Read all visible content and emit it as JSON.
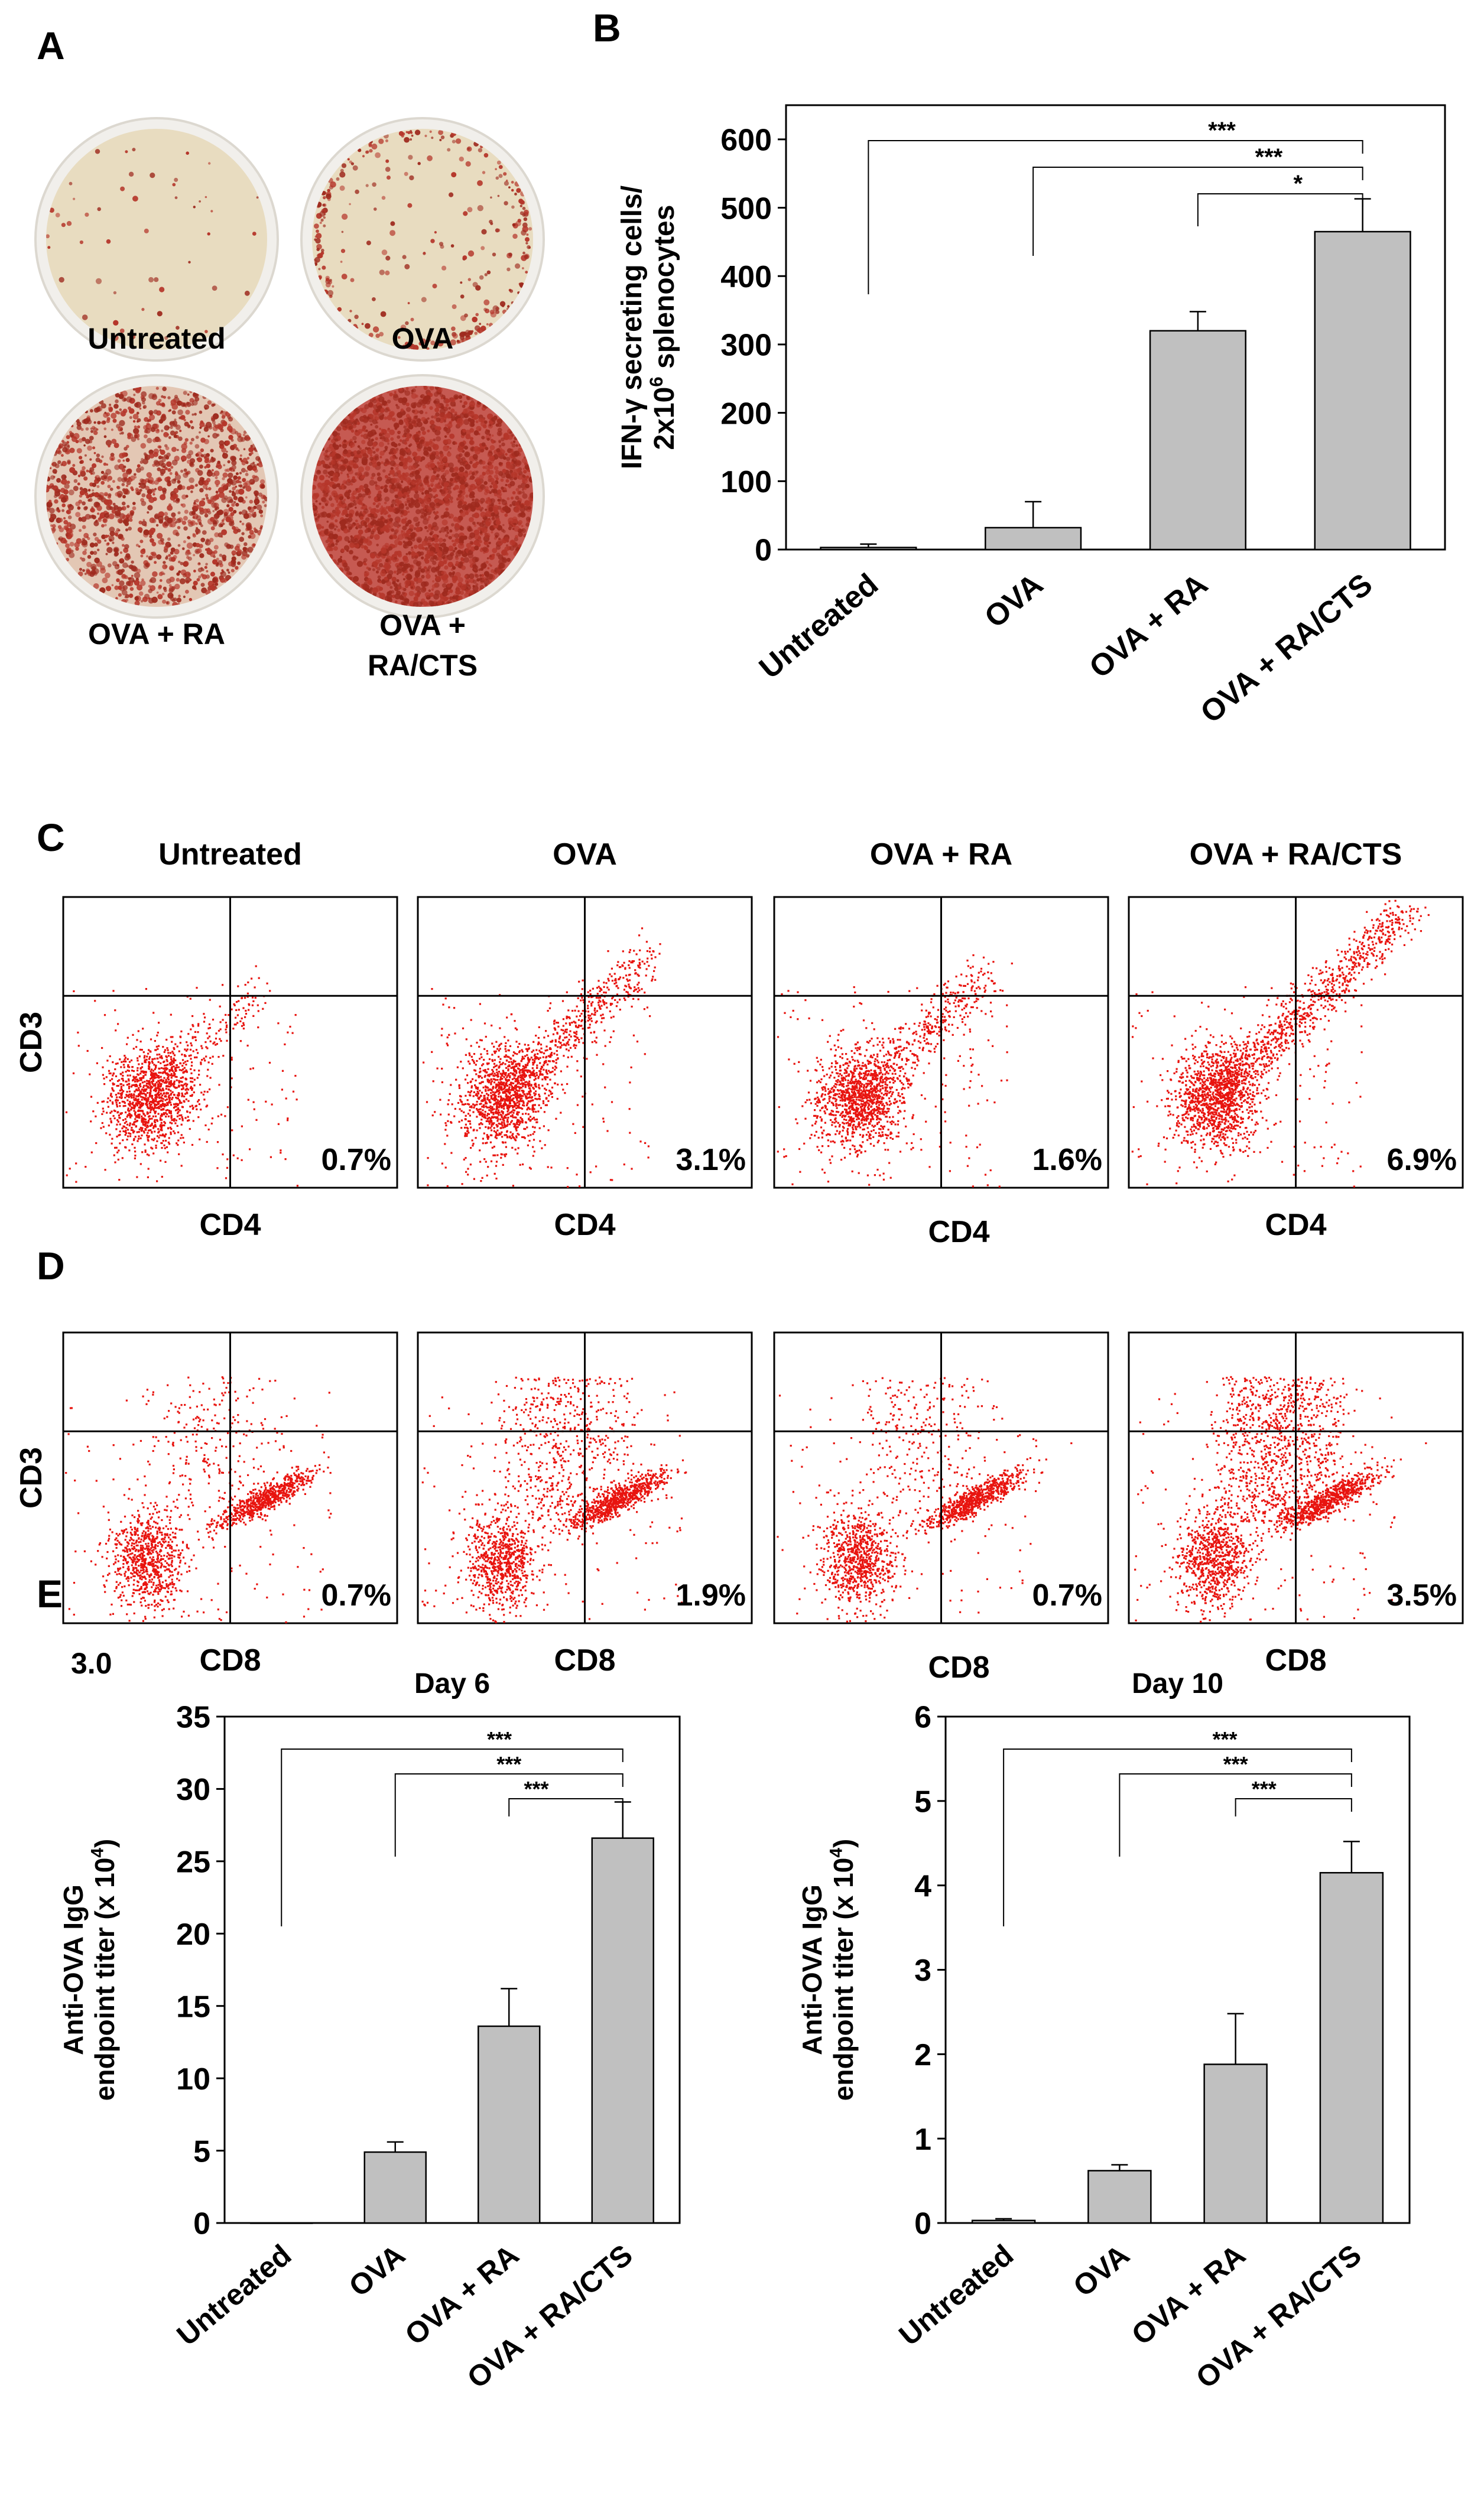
{
  "chart_data": [
    {
      "id": "A",
      "type": "image-grid",
      "panel_label": "A",
      "wells": [
        {
          "label": "Untreated",
          "spot_density": 0.02
        },
        {
          "label": "OVA",
          "spot_density": 0.12
        },
        {
          "label": "OVA + RA",
          "spot_density": 0.55
        },
        {
          "label": "OVA + RA/CTS",
          "spot_density": 0.95
        }
      ]
    },
    {
      "id": "B",
      "type": "bar",
      "panel_label": "B",
      "title": "",
      "ylabel_line1": "IFN-γ secreting cells/",
      "ylabel_line2_pre": "2x10",
      "ylabel_line2_sup": "6",
      "ylabel_line2_post": " splenocytes",
      "ylim": [
        0,
        650
      ],
      "yticks": [
        0,
        100,
        200,
        300,
        400,
        500,
        600
      ],
      "categories": [
        "Untreated",
        "OVA",
        "OVA + RA",
        "OVA + RA/CTS"
      ],
      "values": [
        3,
        32,
        320,
        465
      ],
      "errors": [
        5,
        38,
        28,
        48
      ],
      "bar_color": "#c0c0c0",
      "significance": [
        {
          "from": 0,
          "to": 3,
          "text": "***"
        },
        {
          "from": 1,
          "to": 3,
          "text": "***"
        },
        {
          "from": 2,
          "to": 3,
          "text": "*"
        }
      ]
    },
    {
      "id": "C",
      "type": "scatter",
      "panel_label": "C",
      "ylabel": "CD3",
      "plots": [
        {
          "title": "Untreated",
          "xlabel": "CD4",
          "percent": "0.7%",
          "extent": 0.0
        },
        {
          "title": "OVA",
          "xlabel": "CD4",
          "percent": "3.1%",
          "extent": 0.45
        },
        {
          "title": "OVA + RA",
          "xlabel": "CD4",
          "percent": "1.6%",
          "extent": 0.25
        },
        {
          "title": "OVA + RA/CTS",
          "xlabel": "CD4",
          "percent": "6.9%",
          "extent": 1.0
        }
      ],
      "dot_color": "#e8140f"
    },
    {
      "id": "D",
      "type": "scatter",
      "panel_label": "D",
      "ylabel": "CD3",
      "corner_text": "3.0",
      "plots": [
        {
          "xlabel": "CD8",
          "percent": "0.7%",
          "extent": 0.1
        },
        {
          "xlabel": "CD8",
          "percent": "1.9%",
          "extent": 0.5
        },
        {
          "xlabel": "CD8",
          "percent": "0.7%",
          "extent": 0.15
        },
        {
          "xlabel": "CD8",
          "percent": "3.5%",
          "extent": 1.0
        }
      ],
      "dot_color": "#e8140f"
    },
    {
      "id": "E1",
      "type": "bar",
      "panel_label": "E",
      "title": "Day 6",
      "ylabel_line1": "Anti-OVA IgG",
      "ylabel_line2_pre": "endpoint titer (x 10",
      "ylabel_line2_sup": "4",
      "ylabel_line2_post": ")",
      "ylim": [
        0,
        35
      ],
      "yticks": [
        0,
        5,
        10,
        15,
        20,
        25,
        30,
        35
      ],
      "categories": [
        "Untreated",
        "OVA",
        "OVA + RA",
        "OVA + RA/CTS"
      ],
      "values": [
        0,
        4.9,
        13.6,
        26.6
      ],
      "errors": [
        0,
        0.7,
        2.6,
        2.5
      ],
      "bar_color": "#c0c0c0",
      "significance": [
        {
          "from": 0,
          "to": 3,
          "text": "***"
        },
        {
          "from": 1,
          "to": 3,
          "text": "***"
        },
        {
          "from": 2,
          "to": 3,
          "text": "***"
        }
      ]
    },
    {
      "id": "E2",
      "type": "bar",
      "panel_label": "",
      "title": "Day 10",
      "ylabel_line1": "Anti-OVA IgG",
      "ylabel_line2_pre": "endpoint titer (x 10",
      "ylabel_line2_sup": "4",
      "ylabel_line2_post": ")",
      "ylim": [
        0,
        6
      ],
      "yticks": [
        0,
        1,
        2,
        3,
        4,
        5,
        6
      ],
      "categories": [
        "Untreated",
        "OVA",
        "OVA + RA",
        "OVA + RA/CTS"
      ],
      "values": [
        0.03,
        0.62,
        1.88,
        4.15
      ],
      "errors": [
        0.02,
        0.07,
        0.6,
        0.37
      ],
      "bar_color": "#c0c0c0",
      "significance": [
        {
          "from": 0,
          "to": 3,
          "text": "***"
        },
        {
          "from": 1,
          "to": 3,
          "text": "***"
        },
        {
          "from": 2,
          "to": 3,
          "text": "***"
        }
      ]
    }
  ]
}
